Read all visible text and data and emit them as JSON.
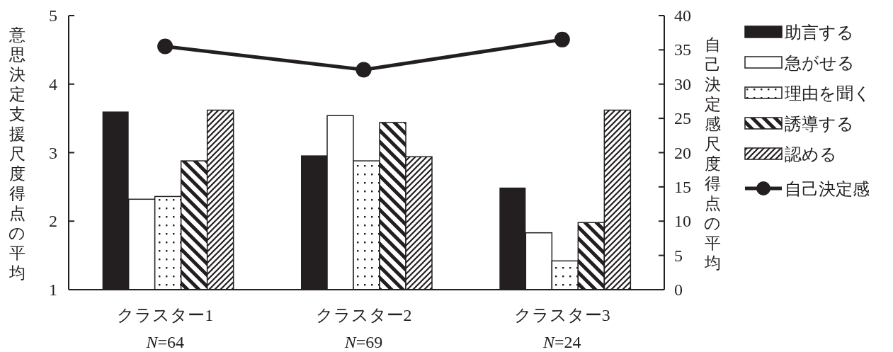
{
  "chart_data": {
    "type": "bar",
    "categories": [
      "クラスター1\n*N*=64",
      "クラスター2\n*N*=69",
      "クラスター3\n*N*=24"
    ],
    "ylabel": "意思決定支援尺度得点の平均",
    "y2label": "自己決定感尺度得点の平均",
    "ylim": [
      1,
      5
    ],
    "yticks": [
      1,
      2,
      3,
      4,
      5
    ],
    "y2lim": [
      0,
      40
    ],
    "y2ticks": [
      0,
      5,
      10,
      15,
      20,
      25,
      30,
      35,
      40
    ],
    "grid": false,
    "legend": "right",
    "series": [
      {
        "name": "助言する",
        "color": "#231f20",
        "values": [
          3.6,
          2.96,
          2.49
        ]
      },
      {
        "name": "急がせる",
        "color": "#ffffff",
        "values": [
          2.32,
          3.54,
          1.83
        ]
      },
      {
        "name": "理由を聞く",
        "color": "#231f20",
        "values": [
          2.36,
          2.88,
          1.42
        ]
      },
      {
        "name": "誘導する",
        "color": "#231f20",
        "values": [
          2.88,
          3.44,
          1.98
        ]
      },
      {
        "name": "認める",
        "color": "#231f20",
        "values": [
          3.62,
          2.94,
          3.62
        ]
      },
      {
        "name": "自己決定感",
        "type": "line",
        "axis": "y2",
        "color": "#231f20",
        "marker": "circle",
        "line_style": "solid",
        "values": [
          35.5,
          32.1,
          36.5
        ]
      }
    ]
  }
}
